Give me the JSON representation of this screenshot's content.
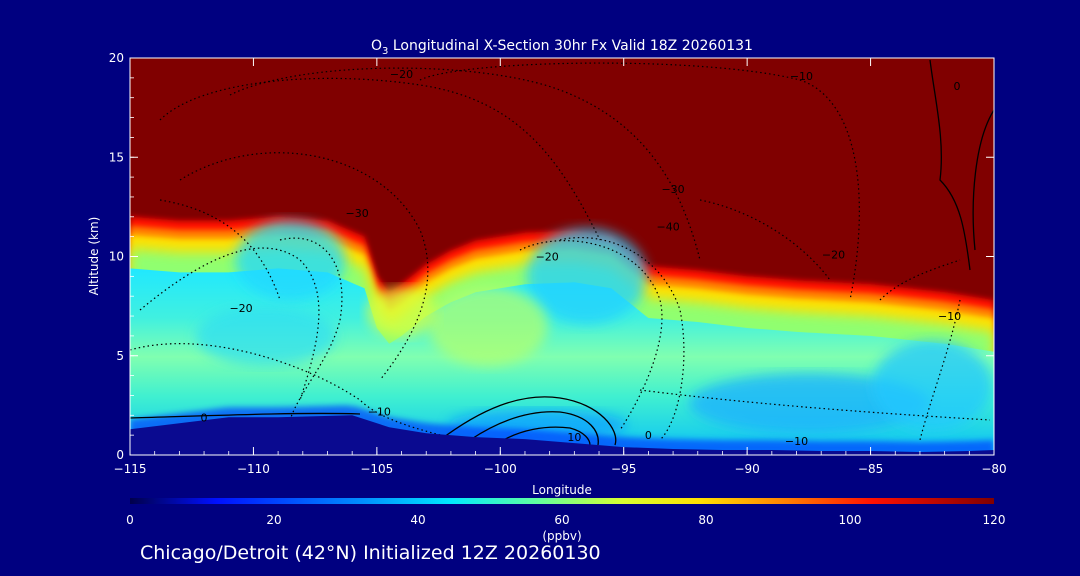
{
  "chart_data": {
    "type": "heatmap",
    "title_main": "O",
    "title_sub": "3",
    "title_rest": " Longitudinal X-Section 30hr  Fx Valid 18Z 20260131",
    "xlabel": "Longitude",
    "ylabel": "Altitude (km)",
    "xlim": [
      -115,
      -80
    ],
    "ylim": [
      0,
      20
    ],
    "xticks": [
      -115,
      -110,
      -105,
      -100,
      -95,
      -90,
      -85,
      -80
    ],
    "xtick_labels": [
      "−115",
      "−110",
      "−105",
      "−100",
      "−95",
      "−90",
      "−85",
      "−80"
    ],
    "yticks": [
      0,
      5,
      10,
      15,
      20
    ],
    "ytick_labels": [
      "0",
      "5",
      "10",
      "15",
      "20"
    ],
    "colorbar": {
      "label": "(ppbv)",
      "min": 0,
      "max": 120,
      "ticks": [
        0,
        20,
        40,
        60,
        80,
        100,
        120
      ],
      "tick_labels": [
        "0",
        "20",
        "40",
        "60",
        "80",
        "100",
        "120"
      ]
    },
    "tropopause_profile": {
      "lon": [
        -115,
        -113,
        -111,
        -109,
        -107,
        -105.5,
        -105,
        -104.5,
        -104,
        -103,
        -102,
        -101,
        -99,
        -97,
        -95.5,
        -94.5,
        -94,
        -93,
        -92,
        -90,
        -88,
        -85,
        -82,
        -80
      ],
      "alt": [
        12.0,
        11.8,
        11.8,
        12.0,
        11.8,
        11.0,
        9.0,
        8.2,
        8.6,
        9.6,
        10.3,
        10.8,
        11.2,
        11.3,
        11.0,
        10.0,
        9.5,
        9.4,
        9.3,
        9.0,
        8.8,
        8.6,
        8.2,
        7.8
      ]
    },
    "terrain_profile": {
      "lon": [
        -115,
        -113,
        -111,
        -109,
        -106,
        -104.5,
        -103,
        -101,
        -99,
        -97,
        -95,
        -93,
        -91,
        -89,
        -87,
        -85,
        -83,
        -81,
        -80
      ],
      "alt": [
        1.3,
        1.6,
        1.9,
        1.9,
        2.0,
        1.4,
        1.1,
        0.9,
        0.8,
        0.6,
        0.4,
        0.3,
        0.25,
        0.25,
        0.2,
        0.2,
        0.15,
        0.2,
        0.25
      ]
    },
    "contour_labels": [
      {
        "text": "−20",
        "lon": -104.0,
        "alt": 19.0
      },
      {
        "text": "−30",
        "lon": -105.8,
        "alt": 12.0
      },
      {
        "text": "−20",
        "lon": -110.5,
        "alt": 7.2
      },
      {
        "text": "−20",
        "lon": -98.1,
        "alt": 9.8
      },
      {
        "text": "−30",
        "lon": -93.0,
        "alt": 13.2
      },
      {
        "text": "−40",
        "lon": -93.2,
        "alt": 11.3
      },
      {
        "text": "−20",
        "lon": -86.5,
        "alt": 9.9
      },
      {
        "text": "−10",
        "lon": -81.8,
        "alt": 6.8
      },
      {
        "text": "−10",
        "lon": -104.9,
        "alt": 2.0
      },
      {
        "text": "−10",
        "lon": -88.0,
        "alt": 0.5
      },
      {
        "text": "0",
        "lon": -112.0,
        "alt": 1.7
      },
      {
        "text": "0",
        "lon": -94.0,
        "alt": 0.8
      },
      {
        "text": "10",
        "lon": -97.0,
        "alt": 0.7
      },
      {
        "text": "0",
        "lon": -81.5,
        "alt": 18.4
      },
      {
        "text": "−10",
        "lon": -87.8,
        "alt": 18.9
      }
    ]
  },
  "footer": {
    "label": "Chicago/Detroit (42°N) Initialized 12Z 20260130"
  }
}
